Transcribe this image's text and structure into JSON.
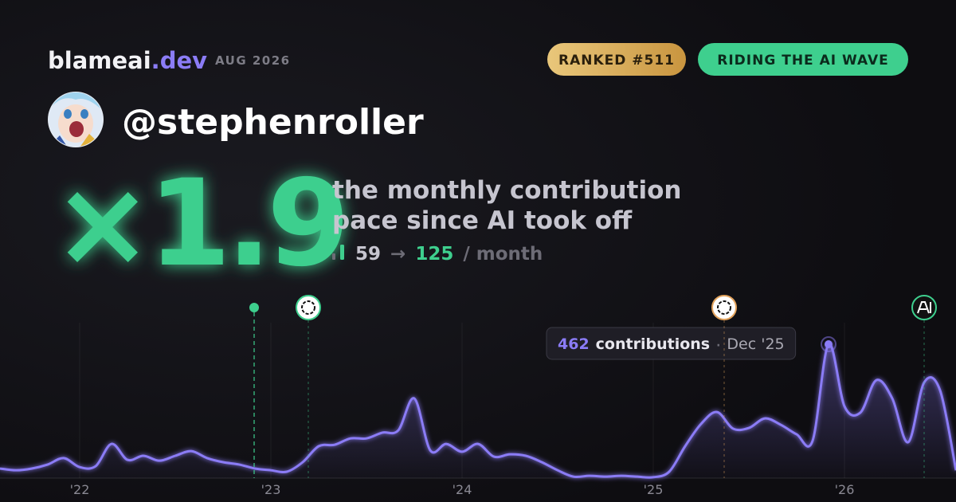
{
  "header": {
    "brand": "blameai",
    "brand_suffix": ".dev",
    "date": "AUG 2026",
    "badges": [
      "RANKED #511",
      "RIDING THE AI WAVE"
    ]
  },
  "profile": {
    "username": "@stephenroller"
  },
  "headline": {
    "multiplier": "×1.9",
    "lines": [
      "the monthly contribution",
      "pace since AI took off"
    ],
    "before": 59,
    "arrow": "→",
    "after": 125,
    "unit": "/ month"
  },
  "chart_data": {
    "type": "area",
    "categories": [
      null,
      null,
      null,
      null,
      null,
      "'22",
      null,
      null,
      null,
      null,
      null,
      null,
      null,
      null,
      null,
      null,
      null,
      "'23",
      null,
      null,
      null,
      null,
      null,
      null,
      null,
      null,
      null,
      null,
      null,
      "'24",
      null,
      null,
      null,
      null,
      null,
      null,
      null,
      null,
      null,
      null,
      null,
      "'25",
      null,
      null,
      null,
      null,
      null,
      null,
      null,
      null,
      null,
      null,
      null,
      "'26",
      null,
      null,
      null,
      null,
      null,
      null,
      null
    ],
    "series": [
      {
        "name": "contributions",
        "color": "#8b7cf6",
        "values": [
          33,
          27,
          33,
          47,
          69,
          38,
          41,
          118,
          63,
          77,
          60,
          77,
          93,
          69,
          55,
          47,
          33,
          27,
          22,
          55,
          110,
          115,
          137,
          137,
          157,
          165,
          275,
          96,
          118,
          91,
          118,
          74,
          82,
          77,
          55,
          27,
          5,
          8,
          5,
          8,
          5,
          3,
          22,
          110,
          187,
          228,
          171,
          173,
          206,
          184,
          151,
          129,
          462,
          248,
          226,
          338,
          275,
          124,
          330,
          303,
          27
        ]
      }
    ],
    "tooltip": {
      "index": 52,
      "label": "Dec '25"
    },
    "grid": true
  }
}
